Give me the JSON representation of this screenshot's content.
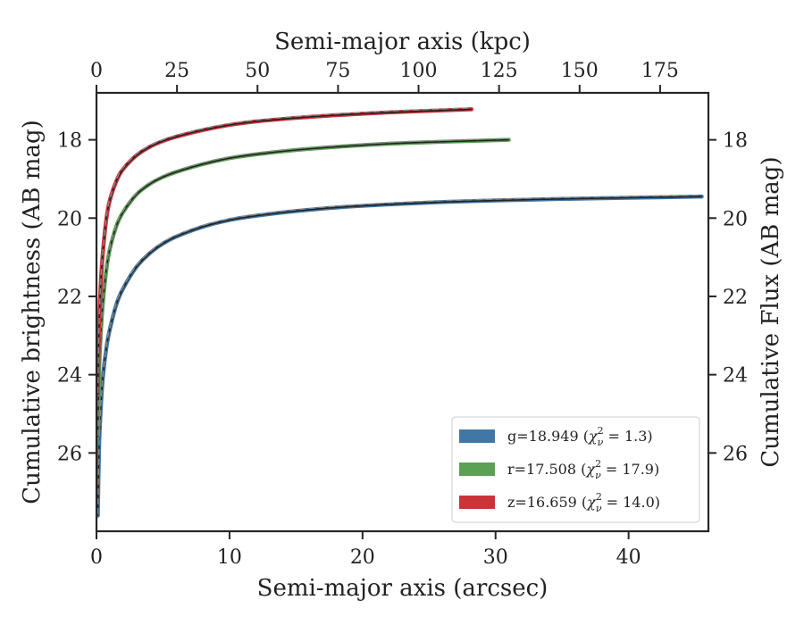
{
  "chart_data": {
    "type": "line",
    "xlabel": "Semi-major axis (arcsec)",
    "x2label": "Semi-major axis (kpc)",
    "ylabel": "Cumulative brightness (AB mag)",
    "y2label": "Cumulative Flux (AB mag)",
    "xlim": [
      0,
      46
    ],
    "x2lim": [
      0,
      190
    ],
    "ylim": [
      28,
      16.8
    ],
    "y_inverted": true,
    "x_ticks": [
      0,
      10,
      20,
      30,
      40
    ],
    "x2_ticks": [
      0,
      25,
      50,
      75,
      100,
      125,
      150,
      175
    ],
    "y_ticks": [
      18,
      20,
      22,
      24,
      26
    ],
    "grid": false,
    "legend_position": "lower-right",
    "series": [
      {
        "name": "g",
        "label": "g=18.949 (χ²ν = 1.3)",
        "legend_main": "g=18.949 (",
        "legend_chi": "χ",
        "legend_sup": "2",
        "legend_sub": "ν",
        "legend_tail": " = 1.3)",
        "color": "#4177a6",
        "x": [
          0.1,
          0.2,
          0.35,
          0.5,
          0.75,
          1,
          1.5,
          2,
          3,
          4,
          5,
          6,
          8,
          10,
          12,
          15,
          18,
          22,
          26,
          30,
          35,
          40,
          45.5
        ],
        "y": [
          27.6,
          25.8,
          24.7,
          24.0,
          23.3,
          22.85,
          22.2,
          21.8,
          21.25,
          20.9,
          20.65,
          20.47,
          20.22,
          20.05,
          19.94,
          19.82,
          19.73,
          19.65,
          19.59,
          19.55,
          19.51,
          19.48,
          19.45
        ]
      },
      {
        "name": "r",
        "label": "r=17.508 (χ²ν = 17.9)",
        "legend_main": "r=17.508 (",
        "legend_chi": "χ",
        "legend_sup": "2",
        "legend_sub": "ν",
        "legend_tail": " = 17.9)",
        "color": "#5aa153",
        "x": [
          0.1,
          0.2,
          0.35,
          0.5,
          0.75,
          1,
          1.5,
          2,
          3,
          4,
          5,
          6,
          8,
          10,
          12,
          15,
          18,
          22,
          26,
          31
        ],
        "y": [
          25.6,
          23.9,
          22.8,
          22.1,
          21.3,
          20.8,
          20.2,
          19.85,
          19.4,
          19.13,
          18.95,
          18.82,
          18.62,
          18.47,
          18.37,
          18.26,
          18.18,
          18.1,
          18.05,
          18.0
        ]
      },
      {
        "name": "z",
        "label": "z=16.659 (χ²ν = 14.0)",
        "legend_main": "z=16.659 (",
        "legend_chi": "χ",
        "legend_sup": "2",
        "legend_sub": "ν",
        "legend_tail": " = 14.0)",
        "color": "#cc3339",
        "x": [
          0.1,
          0.2,
          0.35,
          0.5,
          0.75,
          1,
          1.5,
          2,
          3,
          4,
          5,
          6,
          8,
          10,
          12,
          15,
          18,
          22,
          25,
          28.2
        ],
        "y": [
          24.5,
          22.7,
          21.5,
          20.8,
          20.0,
          19.55,
          19.05,
          18.75,
          18.4,
          18.18,
          18.03,
          17.92,
          17.75,
          17.62,
          17.53,
          17.44,
          17.37,
          17.3,
          17.26,
          17.22
        ]
      }
    ]
  }
}
